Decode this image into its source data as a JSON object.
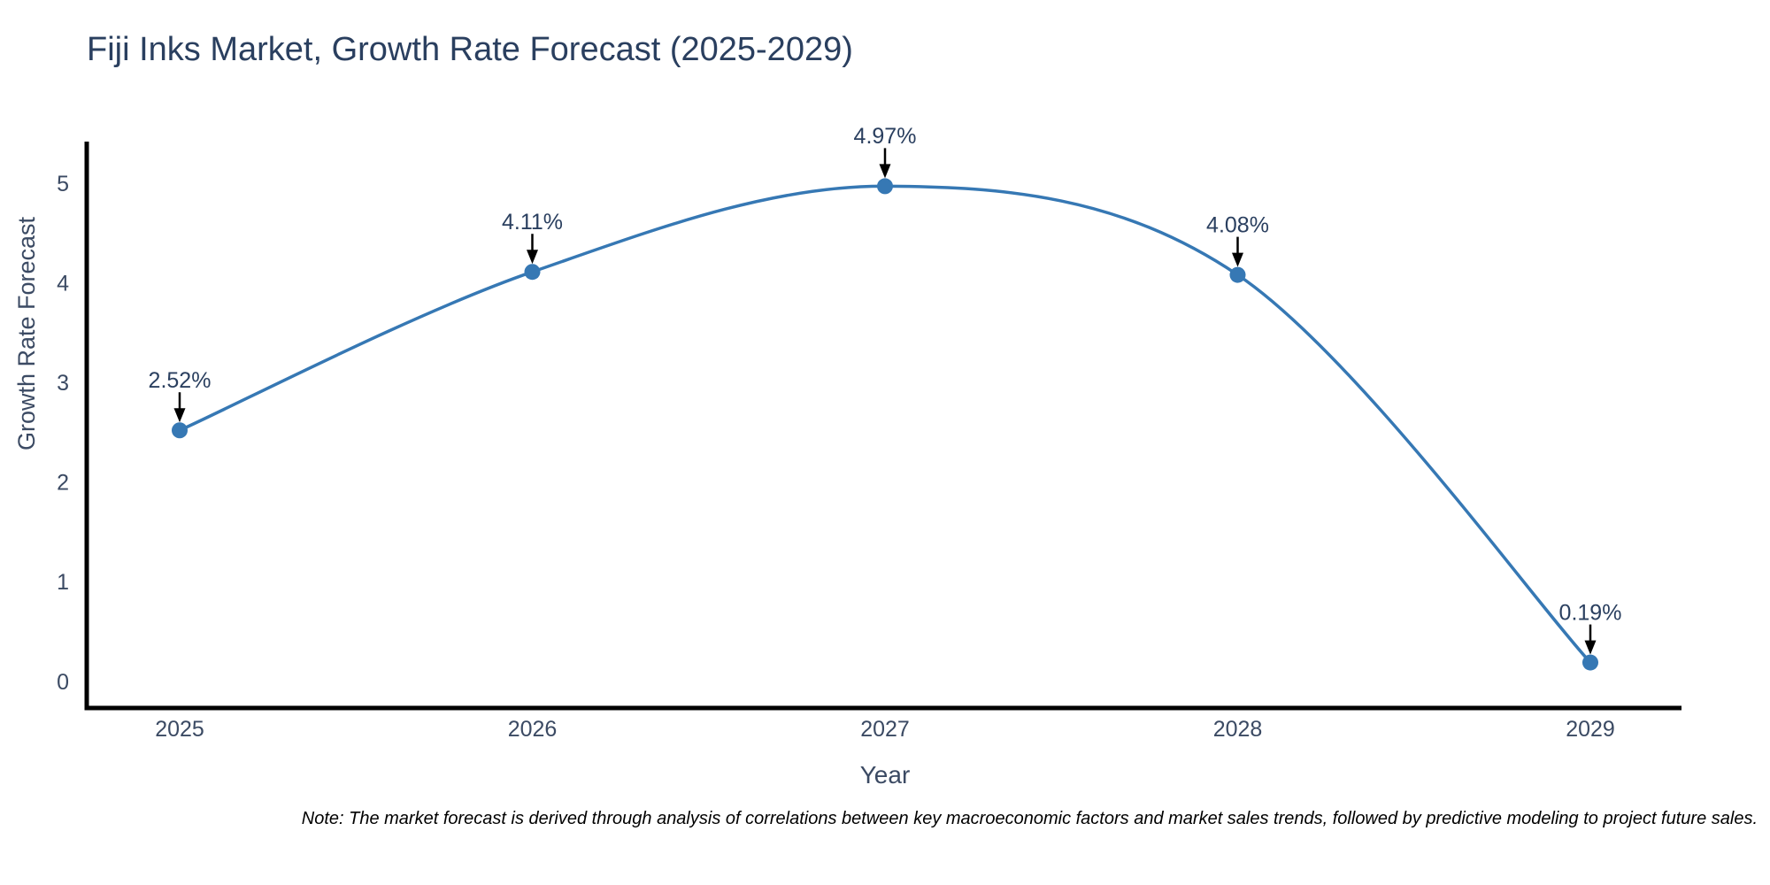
{
  "chart_data": {
    "type": "line",
    "title": "Fiji Inks Market, Growth Rate Forecast (2025-2029)",
    "xlabel": "Year",
    "ylabel": "Growth Rate Forecast",
    "x": [
      2025,
      2026,
      2027,
      2028,
      2029
    ],
    "values": [
      2.52,
      4.11,
      4.97,
      4.08,
      0.19
    ],
    "point_labels": [
      "2.52%",
      "4.11%",
      "4.97%",
      "4.08%",
      "0.19%"
    ],
    "xticks": [
      "2025",
      "2026",
      "2027",
      "2028",
      "2029"
    ],
    "yticks": [
      "0",
      "1",
      "2",
      "3",
      "4",
      "5"
    ],
    "ylim": [
      0,
      5
    ],
    "line_shape": "spline",
    "grid": false,
    "legend": "none",
    "colors": {
      "line": "#3678b4",
      "marker": "#3678b4",
      "axis": "#000000",
      "tick_text": "#3b4a63",
      "title_text": "#2a3f5f",
      "annotation_text": "#2a3f5f",
      "annotation_arrow": "#000000",
      "note_text": "#000000",
      "background": "#ffffff"
    },
    "note": "Note: The market forecast is derived through analysis of correlations between key macroeconomic factors and market sales trends, followed by predictive modeling to project future sales."
  }
}
